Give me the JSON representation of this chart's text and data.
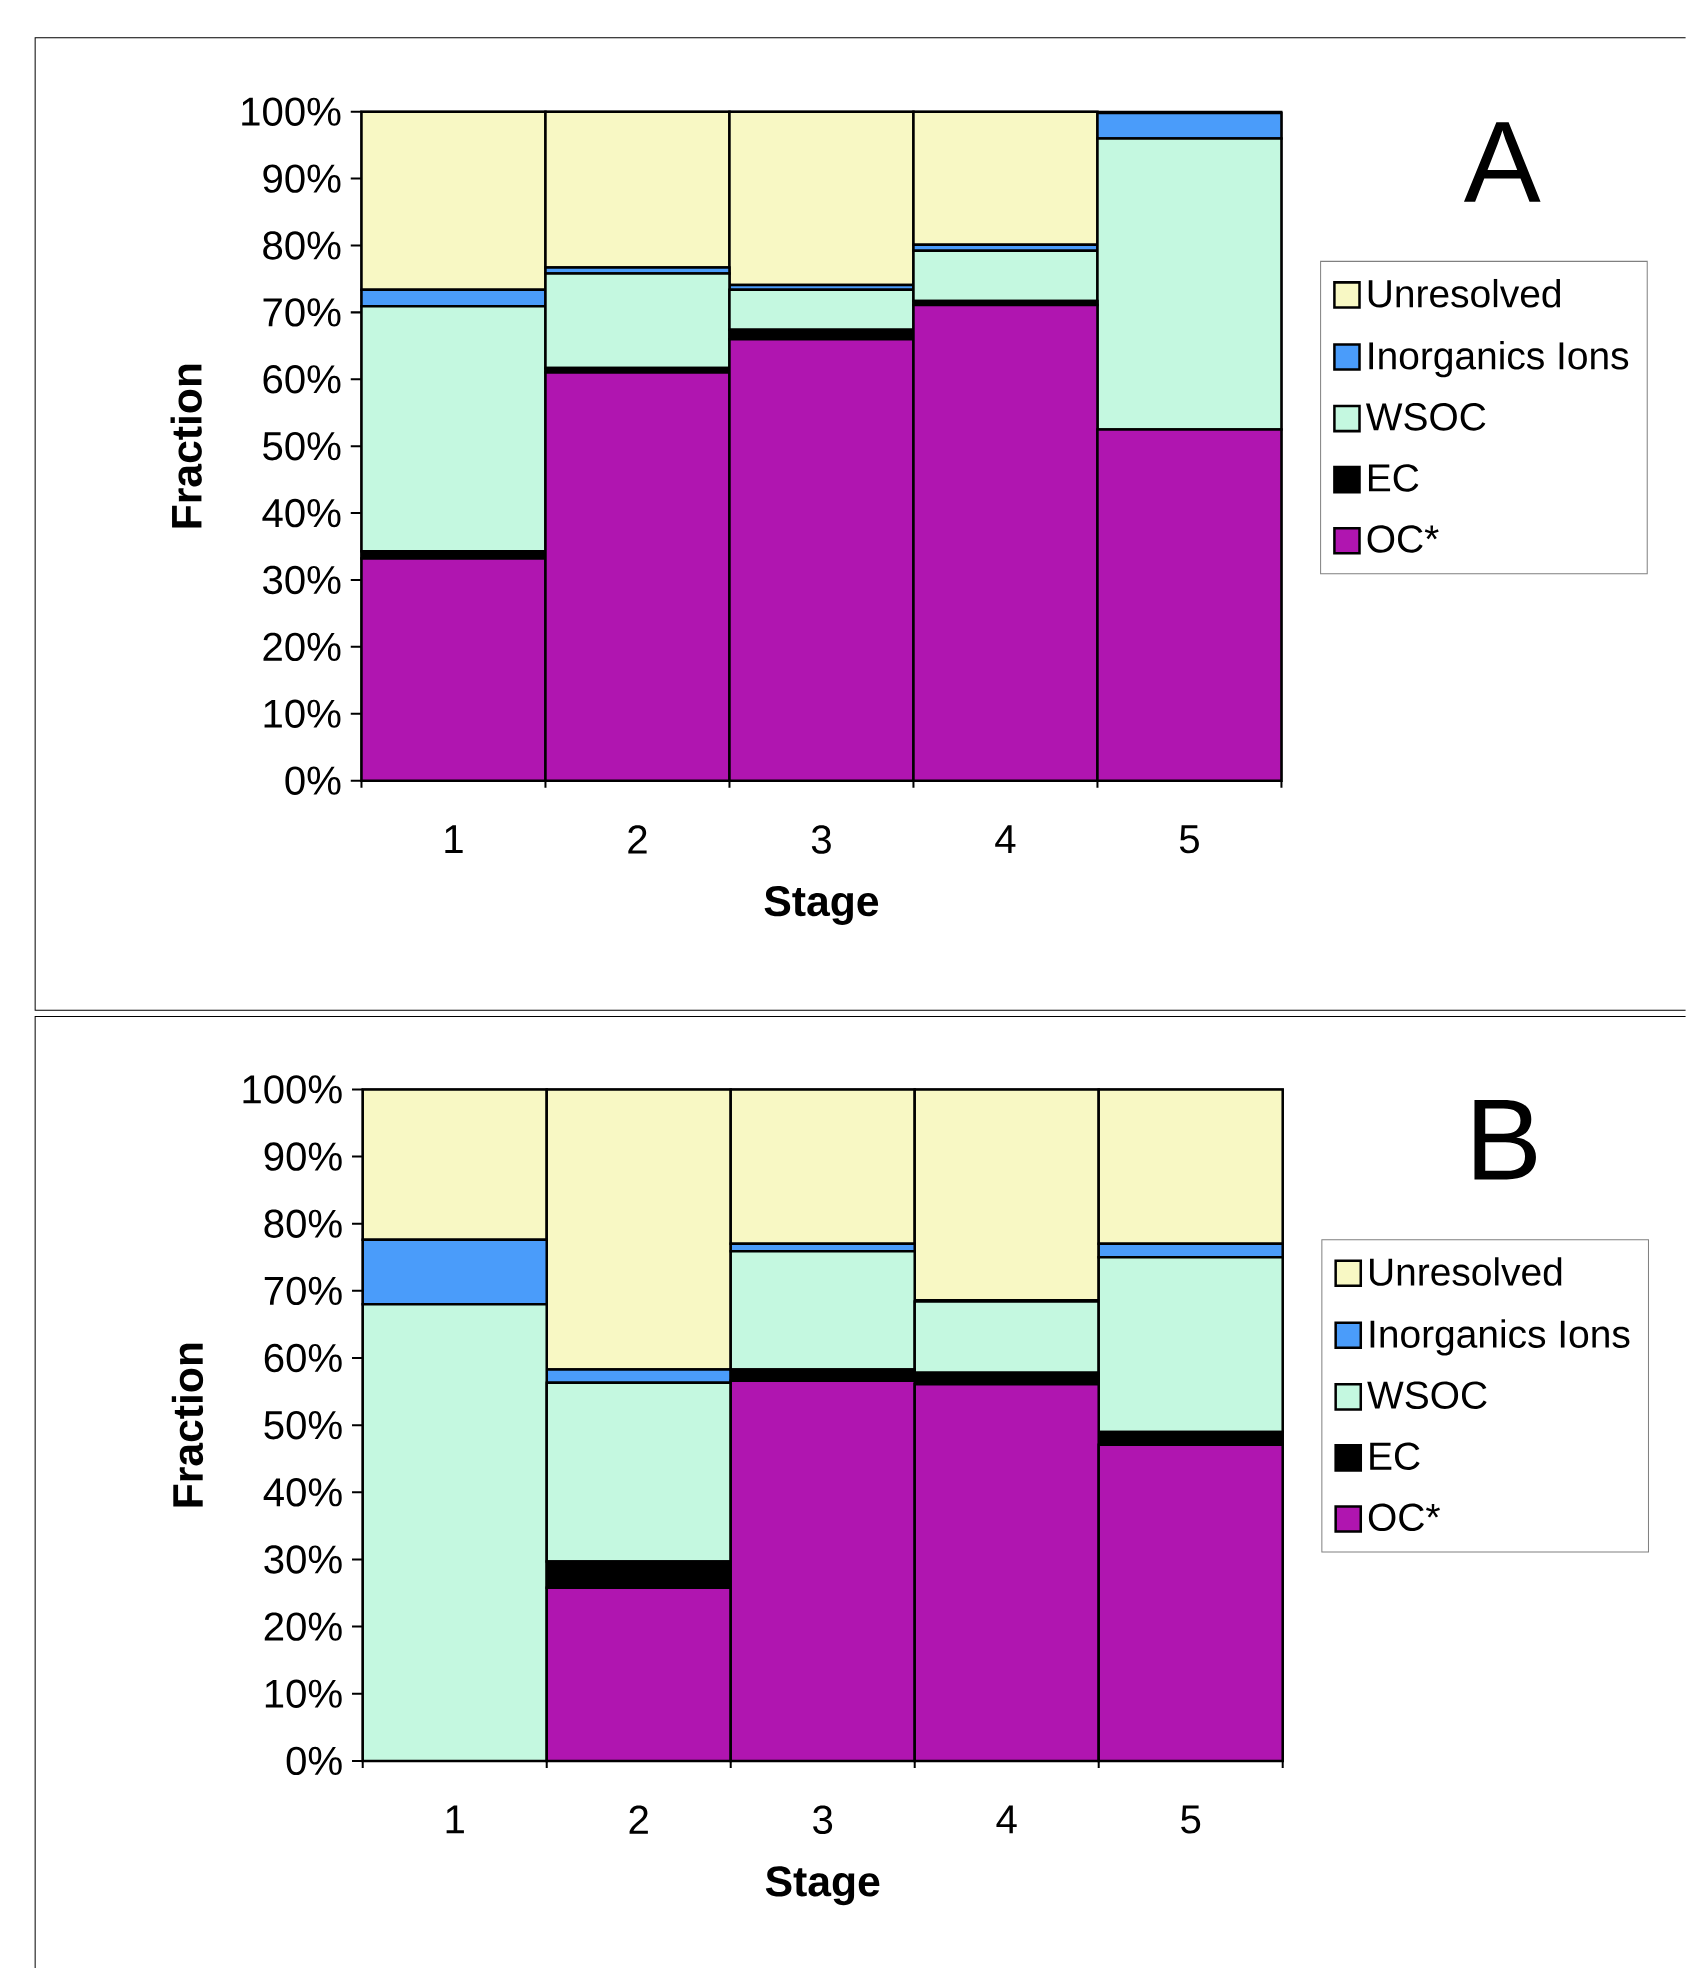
{
  "chart_data": [
    {
      "type": "bar",
      "stacked": true,
      "annotations": [
        "A"
      ],
      "xlabel": "Stage",
      "ylabel": "Fraction",
      "categories": [
        "1",
        "2",
        "3",
        "4",
        "5"
      ],
      "ylim": [
        0,
        100
      ],
      "yticks": [
        {
          "value": 0,
          "label": "0%"
        },
        {
          "value": 10,
          "label": "10%"
        },
        {
          "value": 20,
          "label": "20%"
        },
        {
          "value": 30,
          "label": "30%"
        },
        {
          "value": 40,
          "label": "40%"
        },
        {
          "value": 50,
          "label": "50%"
        },
        {
          "value": 60,
          "label": "60%"
        },
        {
          "value": 70,
          "label": "70%"
        },
        {
          "value": 80,
          "label": "80%"
        },
        {
          "value": 90,
          "label": "90%"
        },
        {
          "value": 100,
          "label": "100%"
        }
      ],
      "legend": "right",
      "series": [
        {
          "name": "OC*",
          "color": "#b015b0",
          "values": [
            33.2,
            61.0,
            66.0,
            71.1,
            52.5
          ]
        },
        {
          "name": "EC",
          "color": "#000000",
          "values": [
            1.1,
            0.7,
            1.4,
            0.6,
            null
          ]
        },
        {
          "name": "WSOC",
          "color": "#c4f8e0",
          "values": [
            36.6,
            14.1,
            6.0,
            7.5,
            43.5
          ]
        },
        {
          "name": "Inorganics Ions",
          "color": "#4a9cfa",
          "values": [
            2.5,
            0.9,
            0.7,
            0.9,
            3.8
          ]
        },
        {
          "name": "Unresolved",
          "color": "#f8f8c4",
          "values": [
            26.6,
            23.3,
            25.9,
            19.9,
            0
          ]
        }
      ]
    },
    {
      "type": "bar",
      "stacked": true,
      "annotations": [
        "B"
      ],
      "xlabel": "Stage",
      "ylabel": "Fraction",
      "categories": [
        "1",
        "2",
        "3",
        "4",
        "5"
      ],
      "ylim": [
        0,
        100
      ],
      "yticks": [
        {
          "value": 0,
          "label": "0%"
        },
        {
          "value": 10,
          "label": "10%"
        },
        {
          "value": 20,
          "label": "20%"
        },
        {
          "value": 30,
          "label": "30%"
        },
        {
          "value": 40,
          "label": "40%"
        },
        {
          "value": 50,
          "label": "50%"
        },
        {
          "value": 60,
          "label": "60%"
        },
        {
          "value": 70,
          "label": "70%"
        },
        {
          "value": 80,
          "label": "80%"
        },
        {
          "value": 90,
          "label": "90%"
        },
        {
          "value": 100,
          "label": "100%"
        }
      ],
      "legend": "right",
      "series": [
        {
          "name": "OC*",
          "color": "#b015b0",
          "values": [
            0,
            25.8,
            56.6,
            56.1,
            47.1
          ]
        },
        {
          "name": "EC",
          "color": "#000000",
          "values": [
            0,
            3.9,
            1.7,
            1.7,
            1.9
          ]
        },
        {
          "name": "WSOC",
          "color": "#c4f8e0",
          "values": [
            68.0,
            26.6,
            17.6,
            10.6,
            26.0
          ]
        },
        {
          "name": "Inorganics Ions",
          "color": "#4a9cfa",
          "values": [
            9.6,
            2.0,
            1.1,
            0.2,
            2.0
          ]
        },
        {
          "name": "Unresolved",
          "color": "#f8f8c4",
          "values": [
            22.4,
            41.7,
            23.0,
            31.4,
            23.0
          ]
        }
      ]
    }
  ]
}
